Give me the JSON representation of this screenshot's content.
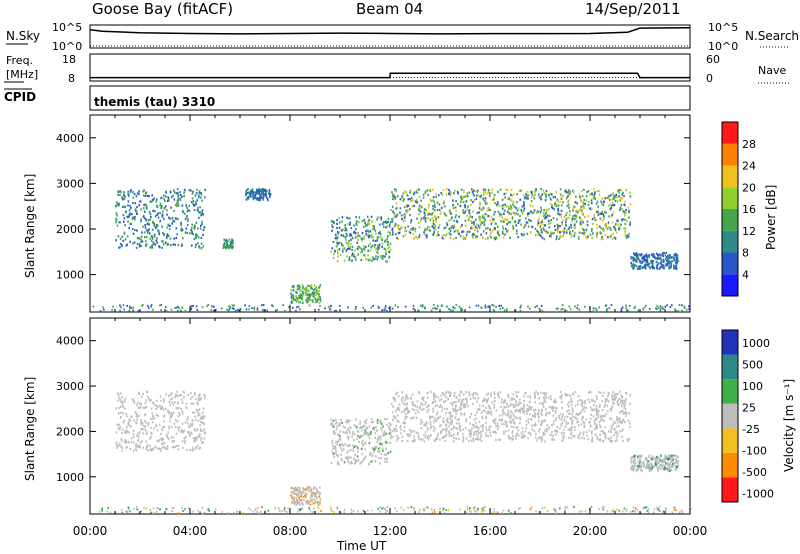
{
  "header": {
    "station": "Goose Bay (fitACF)",
    "beam": "Beam 04",
    "date": "14/Sep/2011"
  },
  "noise_panel": {
    "left_label": "N.Sky",
    "right_label": "N.Search",
    "left_ticks": [
      "10^5",
      "10^0"
    ],
    "right_ticks": [
      "10^5",
      "10^0"
    ]
  },
  "freq_panel": {
    "left_label_1": "Freq.",
    "left_label_2": "[MHz]",
    "right_label": "Nave",
    "left_ticks": [
      "18",
      "8"
    ],
    "right_ticks": [
      "60",
      "0"
    ]
  },
  "cpid": {
    "label": "CPID",
    "value": "themis (tau) 3310"
  },
  "x_axis": {
    "label": "Time UT",
    "ticks": [
      "00:00",
      "04:00",
      "08:00",
      "12:00",
      "16:00",
      "20:00",
      "00:00"
    ],
    "range_hours": [
      0,
      24
    ]
  },
  "y_axis": {
    "label": "Slant Range [km]",
    "ticks": [
      "1000",
      "2000",
      "3000",
      "4000"
    ],
    "range_km": [
      180,
      4500
    ]
  },
  "power_colorbar": {
    "title": "Power [dB]",
    "ticks": [
      "4",
      "8",
      "12",
      "16",
      "20",
      "24",
      "28"
    ],
    "colors": [
      "#1a1aff",
      "#2a56c8",
      "#2f8a8a",
      "#43a64a",
      "#8fcf2e",
      "#f0c020",
      "#ff7f00",
      "#ff1a1a"
    ]
  },
  "velocity_colorbar": {
    "title": "Velocity [m s⁻¹]",
    "ticks": [
      "1000",
      "500",
      "100",
      "25",
      "-25",
      "-100",
      "-500",
      "-1000"
    ],
    "colors": [
      "#2233bb",
      "#2d8a8a",
      "#3fb04a",
      "#bdbdbd",
      "#f0c020",
      "#ff8c00",
      "#ff1a1a"
    ]
  },
  "chart_data": [
    {
      "type": "line",
      "title": "N.Sky / N.Search",
      "x": [
        0,
        0.5,
        2,
        4,
        6,
        8,
        10,
        12,
        14,
        16,
        18,
        20,
        21.5,
        22,
        24
      ],
      "series": [
        {
          "name": "N.Sky",
          "values": [
            20000,
            8000,
            3000,
            2000,
            1500,
            2000,
            2500,
            2000,
            1500,
            1800,
            1800,
            2000,
            4000,
            50000,
            60000
          ]
        },
        {
          "name": "N.Search",
          "values": [
            1,
            1,
            1,
            1,
            1,
            1,
            1,
            1,
            1,
            1,
            1,
            1,
            1,
            1,
            1
          ]
        }
      ],
      "ylim": [
        1,
        100000
      ]
    },
    {
      "type": "line",
      "title": "Freq / Nave",
      "x": [
        0,
        12,
        12.01,
        21.9,
        22,
        24
      ],
      "series": [
        {
          "name": "Freq. [MHz]",
          "values": [
            8.6,
            8.6,
            10.5,
            10.5,
            8.6,
            8.6
          ]
        },
        {
          "name": "Nave",
          "values": [
            3,
            3,
            4,
            4,
            3,
            3
          ]
        }
      ]
    },
    {
      "type": "heatmap",
      "title": "Power [dB]",
      "xlabel": "Time UT",
      "ylabel": "Slant Range [km]",
      "xlim": [
        0,
        24
      ],
      "ylim": [
        180,
        4500
      ],
      "features": [
        {
          "t": [
            1.0,
            4.6
          ],
          "range": [
            1600,
            2900
          ],
          "power_db": [
            4,
            16
          ]
        },
        {
          "t": [
            5.3,
            5.7
          ],
          "range": [
            1600,
            1800
          ],
          "power_db": [
            8,
            16
          ]
        },
        {
          "t": [
            6.2,
            7.2
          ],
          "range": [
            2650,
            2900
          ],
          "power_db": [
            4,
            12
          ]
        },
        {
          "t": [
            8.0,
            9.2
          ],
          "range": [
            400,
            800
          ],
          "power_db": [
            8,
            20
          ]
        },
        {
          "t": [
            9.6,
            12.0
          ],
          "range": [
            1300,
            2300
          ],
          "power_db": [
            4,
            20
          ]
        },
        {
          "t": [
            12.0,
            21.6
          ],
          "range": [
            1800,
            2900
          ],
          "power_db": [
            4,
            24
          ]
        },
        {
          "t": [
            21.6,
            23.5
          ],
          "range": [
            1150,
            1500
          ],
          "power_db": [
            4,
            12
          ]
        }
      ]
    },
    {
      "type": "heatmap",
      "title": "Velocity [m s⁻¹]",
      "xlabel": "Time UT",
      "ylabel": "Slant Range [km]",
      "xlim": [
        0,
        24
      ],
      "ylim": [
        180,
        4500
      ],
      "features": [
        {
          "t": [
            1.0,
            4.6
          ],
          "range": [
            1600,
            2900
          ],
          "velocity": [
            -25,
            25
          ]
        },
        {
          "t": [
            8.0,
            9.2
          ],
          "range": [
            400,
            800
          ],
          "velocity": [
            -500,
            -100
          ]
        },
        {
          "t": [
            9.6,
            12.0
          ],
          "range": [
            1300,
            2300
          ],
          "velocity": [
            -25,
            100
          ]
        },
        {
          "t": [
            12.0,
            21.6
          ],
          "range": [
            1800,
            2900
          ],
          "velocity": [
            -25,
            25
          ]
        },
        {
          "t": [
            21.6,
            23.5
          ],
          "range": [
            1150,
            1500
          ],
          "velocity": [
            25,
            500
          ]
        }
      ]
    }
  ]
}
